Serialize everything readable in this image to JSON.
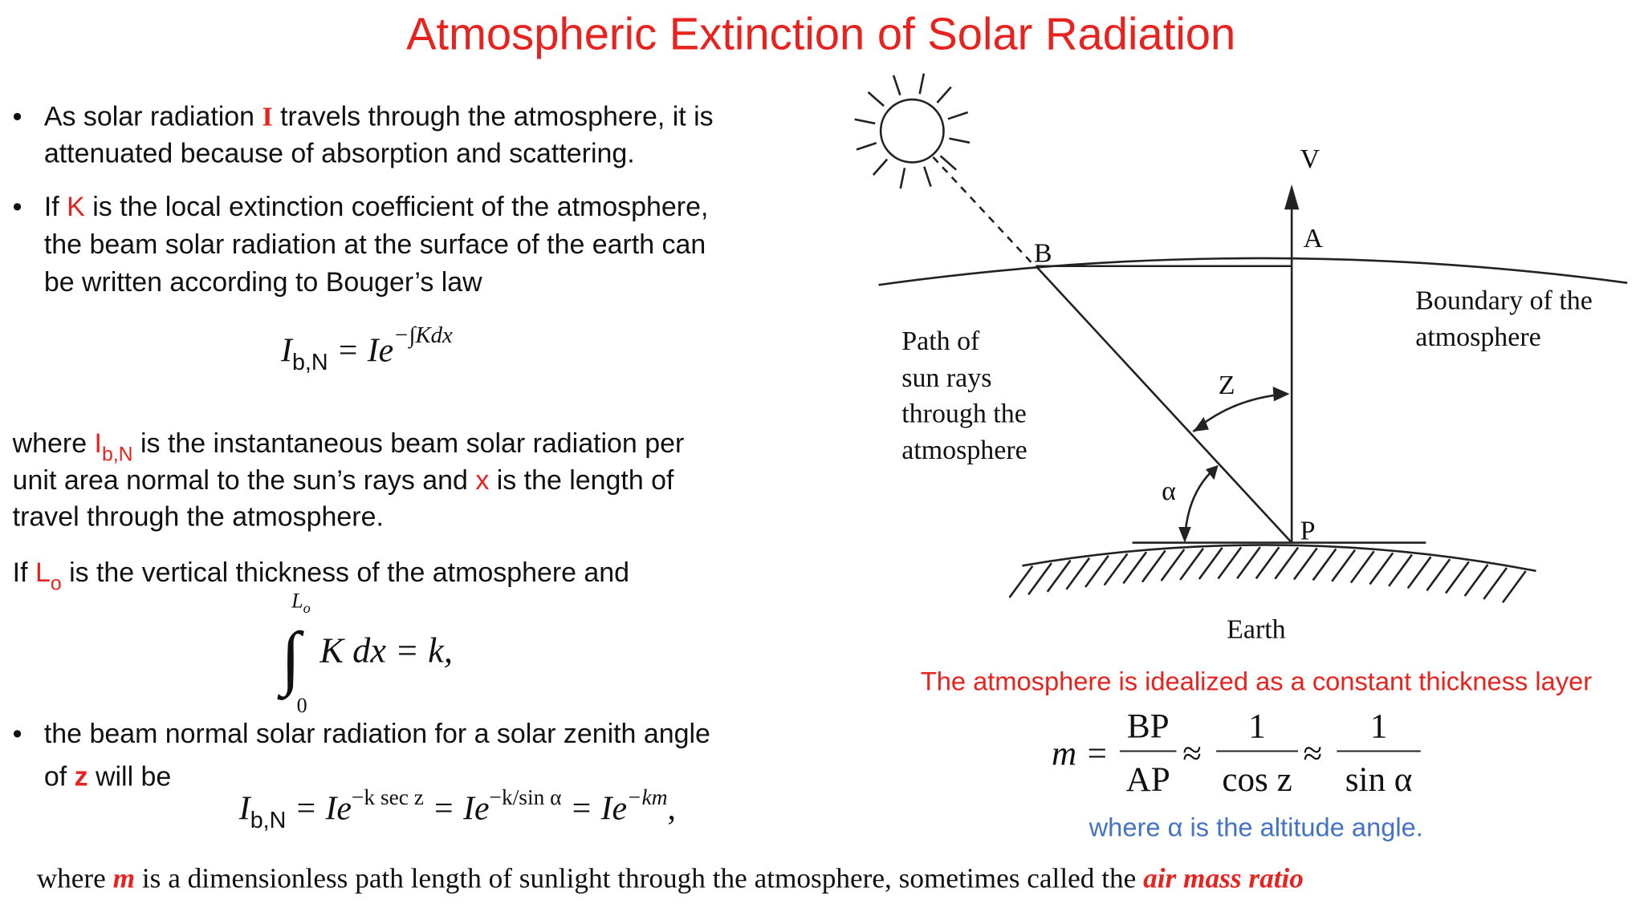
{
  "title": "Atmospheric Extinction of Solar Radiation",
  "bullet": "•",
  "bullets": [
    [
      "As solar radiation ",
      "I",
      " travels through the atmosphere, it is",
      "attenuated because of absorption and scattering."
    ],
    [
      "If ",
      "K",
      " is the local extinction coefficient of the atmosphere,",
      "the beam solar radiation at the surface of the earth can",
      "be written according to Bouger’s law"
    ],
    [
      "the beam normal solar radiation for a solar zenith angle",
      "of ",
      "z",
      " will be"
    ]
  ],
  "eq1": [
    "I",
    "b,N",
    " = Ie",
    "−∫Kdx"
  ],
  "para1": [
    "where ",
    "I",
    "b,N",
    " is the instantaneous beam solar radiation per",
    "unit area normal to the sun’s rays and ",
    "x",
    " is the length of",
    "travel through the atmosphere."
  ],
  "para2": [
    "If ",
    "L",
    "o",
    " is the vertical thickness of the atmosphere and"
  ],
  "eq2": [
    "L",
    "o",
    "∫",
    "0",
    "K dx = k,"
  ],
  "eq3": [
    "I",
    "b,N",
    " = Ie",
    "−k sec z",
    " = Ie",
    "−k/sin α",
    " = Ie",
    "−km",
    ","
  ],
  "footer": [
    "where ",
    "m",
    " is a dimensionless path length of sunlight through the atmosphere, sometimes called the ",
    "air mass ratio"
  ],
  "diagram": {
    "labels": {
      "V": "V",
      "A": "A",
      "B": "B",
      "P": "P",
      "Z": "Z",
      "alpha": "α",
      "earth": "Earth"
    },
    "path_text": [
      "Path of",
      "sun rays",
      "through the",
      "atmosphere"
    ],
    "boundary_text": [
      "Boundary of the",
      "atmosphere"
    ]
  },
  "caption": "The atmosphere is idealized as a constant thickness layer",
  "air_mass_eq": [
    "m =",
    "BP",
    "AP",
    "≈",
    "1",
    "cos z",
    "≈",
    "1",
    "sin α"
  ],
  "note": "where α is the altitude angle."
}
